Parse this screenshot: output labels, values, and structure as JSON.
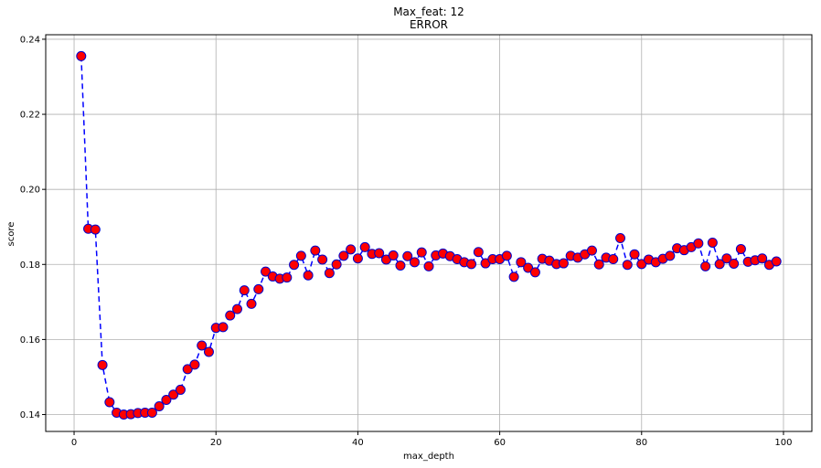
{
  "chart_data": {
    "type": "line",
    "title": "Max_feat: 12",
    "subtitle": "ERROR",
    "xlabel": "max_depth",
    "ylabel": "score",
    "xlim": [
      -4,
      104
    ],
    "ylim": [
      0.1355,
      0.2412
    ],
    "xticks": [
      0,
      20,
      40,
      60,
      80,
      100
    ],
    "yticks": [
      0.14,
      0.16,
      0.18,
      0.2,
      0.22,
      0.24
    ],
    "ytick_labels": [
      "0.14",
      "0.16",
      "0.18",
      "0.20",
      "0.22",
      "0.24"
    ],
    "grid": true,
    "line_color": "#0000ff",
    "line_style": "dashed",
    "marker_face_color": "#ff0000",
    "marker_edge_color": "#0000cc",
    "series": [
      {
        "x": [
          1,
          2,
          3,
          4,
          5,
          6,
          7,
          8,
          9,
          10,
          11,
          12,
          13,
          14,
          15,
          16,
          17,
          18,
          19,
          20,
          21,
          22,
          23,
          24,
          25,
          26,
          27,
          28,
          29,
          30,
          31,
          32,
          33,
          34,
          35,
          36,
          37,
          38,
          39,
          40,
          41,
          42,
          43,
          44,
          45,
          46,
          47,
          48,
          49,
          50,
          51,
          52,
          53,
          54,
          55,
          56,
          57,
          58,
          59,
          60,
          61,
          62,
          63,
          64,
          65,
          66,
          67,
          68,
          69,
          70,
          71,
          72,
          73,
          74,
          75,
          76,
          77,
          78,
          79,
          80,
          81,
          82,
          83,
          84,
          85,
          86,
          87,
          88,
          89,
          90,
          91,
          92,
          93,
          94,
          95,
          96,
          97,
          98,
          99
        ],
        "values": [
          0.2355,
          0.1895,
          0.1893,
          0.1532,
          0.1433,
          0.1405,
          0.14,
          0.1401,
          0.1404,
          0.1405,
          0.1405,
          0.1422,
          0.1439,
          0.1453,
          0.1466,
          0.1521,
          0.1533,
          0.1584,
          0.1567,
          0.1631,
          0.1633,
          0.1664,
          0.1681,
          0.1731,
          0.1695,
          0.1734,
          0.1781,
          0.1768,
          0.1762,
          0.1765,
          0.1799,
          0.1823,
          0.1771,
          0.1837,
          0.1813,
          0.1777,
          0.18,
          0.1823,
          0.184,
          0.1816,
          0.1846,
          0.1828,
          0.183,
          0.1813,
          0.1824,
          0.1797,
          0.1822,
          0.1806,
          0.1832,
          0.1795,
          0.1824,
          0.1829,
          0.1822,
          0.1814,
          0.1806,
          0.1801,
          0.1833,
          0.1803,
          0.1814,
          0.1814,
          0.1823,
          0.1767,
          0.1806,
          0.1791,
          0.1779,
          0.1815,
          0.181,
          0.1801,
          0.1803,
          0.1823,
          0.1818,
          0.1827,
          0.1837,
          0.18,
          0.1818,
          0.1814,
          0.187,
          0.1799,
          0.1827,
          0.1801,
          0.1813,
          0.1806,
          0.1815,
          0.1823,
          0.1843,
          0.1838,
          0.1846,
          0.1856,
          0.1795,
          0.1858,
          0.1801,
          0.1816,
          0.1802,
          0.1841,
          0.1807,
          0.1811,
          0.1816,
          0.1799,
          0.1808
        ]
      }
    ]
  }
}
